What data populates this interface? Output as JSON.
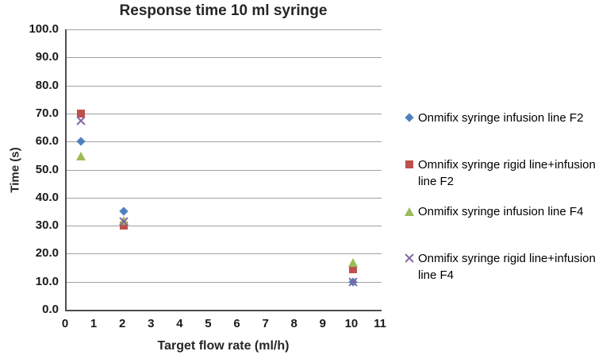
{
  "chart_data": {
    "type": "scatter",
    "title": "Response time 10 ml syringe",
    "xlabel": "Target flow rate (ml/h)",
    "ylabel": "Time (s)",
    "xlim": [
      0,
      11
    ],
    "ylim": [
      0,
      100
    ],
    "x_tick_labels": [
      "0",
      "1",
      "2",
      "3",
      "4",
      "5",
      "6",
      "7",
      "8",
      "9",
      "10",
      "11"
    ],
    "y_tick_labels": [
      "0.0",
      "10.0",
      "20.0",
      "30.0",
      "40.0",
      "50.0",
      "60.0",
      "70.0",
      "80.0",
      "90.0",
      "100.0"
    ],
    "grid": "horizontal-only",
    "legend_position": "right",
    "series": [
      {
        "name": "Onmifix syringe infusion line F2",
        "marker": "diamond",
        "color": "#4F81BD",
        "points": [
          [
            0.5,
            60
          ],
          [
            2,
            35
          ],
          [
            10,
            10
          ]
        ]
      },
      {
        "name": "Omnifix syringe rigid line+infusion line F2",
        "marker": "square",
        "color": "#C0504D",
        "points": [
          [
            0.5,
            70
          ],
          [
            2,
            30
          ],
          [
            10,
            14.5
          ]
        ]
      },
      {
        "name": "Onmifix syringe infusion line F4",
        "marker": "triangle",
        "color": "#9BBB59",
        "points": [
          [
            0.5,
            55
          ],
          [
            2,
            32
          ],
          [
            10,
            17
          ]
        ]
      },
      {
        "name": "Onmifix syringe rigid line+infusion line F4",
        "marker": "x",
        "color": "#8064A2",
        "points": [
          [
            0.5,
            67.5
          ],
          [
            2,
            31.5
          ],
          [
            10,
            10
          ]
        ]
      }
    ]
  }
}
